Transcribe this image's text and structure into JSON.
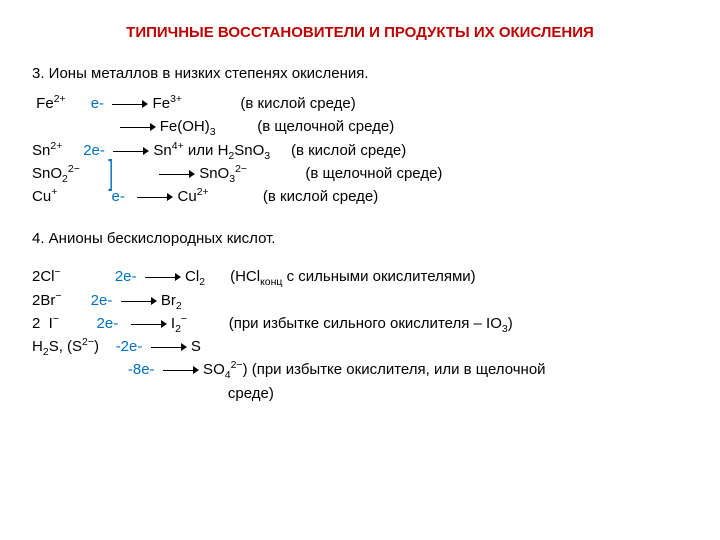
{
  "title_color": "#c00000",
  "electron_color": "#0070c0",
  "text_color": "#000000",
  "background_color": "#ffffff",
  "font_size_body": 15,
  "title": "ТИПИЧНЫЕ ВОССТАНОВИТЕЛИ И ПРОДУКТЫ ИХ ОКИСЛЕНИЯ",
  "section3": {
    "heading": "3. Ионы металлов в низких степенях окисления.",
    "rows": [
      {
        "left": " Fe",
        "left_sup": "2+",
        "spacer": "      ",
        "e": "e-",
        "spacer2": "  ",
        "right_pre": " Fe",
        "right_sup": "3+",
        "right_post": "              (в кислой среде)"
      },
      {
        "left": "",
        "left_sup": "",
        "spacer": "                     ",
        "e": "",
        "spacer2": "",
        "right_pre": " Fe(OH)",
        "right_sub": "3",
        "right_post": "          (в щелочной среде)"
      },
      {
        "left": "Sn",
        "left_sup": "2+",
        "spacer": "     ",
        "e": "2e-",
        "spacer2": "  ",
        "right_pre": " Sn",
        "right_sup": "4+",
        "right_mid": " или H",
        "right_sub2": "2",
        "right_tail": "SnO",
        "right_sub3": "3",
        "right_post": "     (в кислой среде)"
      },
      {
        "left": "SnO",
        "left_sub": "2",
        "left_sup": "2−",
        "spacer": "                   ",
        "e": "",
        "spacer2": "",
        "right_pre": " SnO",
        "right_sub": "3",
        "right_sup2": "2−",
        "right_post": "              (в щелочной среде)"
      },
      {
        "left": "Cu",
        "left_sup": "+",
        "spacer": "             ",
        "e": "e-",
        "spacer2": "   ",
        "right_pre": " Cu",
        "right_sup": "2+",
        "right_post": "             (в кислой среде)"
      }
    ]
  },
  "section4": {
    "heading": "4. Анионы бескислородных кислот.",
    "rows": [
      {
        "left": "2Cl",
        "left_sup": "−",
        "spacer": "             ",
        "e": "2e-",
        "spacer2": "  ",
        "right_pre": " Cl",
        "right_sub": "2",
        "right_post": "      (HCl",
        "right_small": "конц",
        "right_post2": " с сильными окислителями)"
      },
      {
        "left": "2Br",
        "left_sup": "−",
        "spacer": "       ",
        "e": "2e-",
        "spacer2": "  ",
        "right_pre": " Br",
        "right_sub": "2",
        "right_post": ""
      },
      {
        "left": "2  I",
        "left_sup": "−",
        "spacer": "         ",
        "e": "2e-",
        "spacer2": "   ",
        "right_pre": " I",
        "right_sub": "2",
        "right_post": "          (при избытке сильного окислителя – IO",
        "right_sub2": "3",
        "right_sup2": "−",
        "right_post2": ")"
      },
      {
        "left": "H",
        "left_sub": "2",
        "left_mid": "S, (S",
        "left_sup": "2−",
        "left_tail": ")    ",
        "e": "-2e-",
        "spacer2": "  ",
        "right_pre": " S",
        "right_post": ""
      },
      {
        "left": "",
        "spacer": "                       ",
        "e": "-8e-",
        "spacer2": "  ",
        "right_pre": " SO",
        "right_sub": "4",
        "right_sup2": "2−",
        "right_post": ") (при избытке окислителя, или в щелочной"
      },
      {
        "left": "",
        "spacer": "                                               ",
        "e": "",
        "right_post": "среде)"
      }
    ]
  }
}
